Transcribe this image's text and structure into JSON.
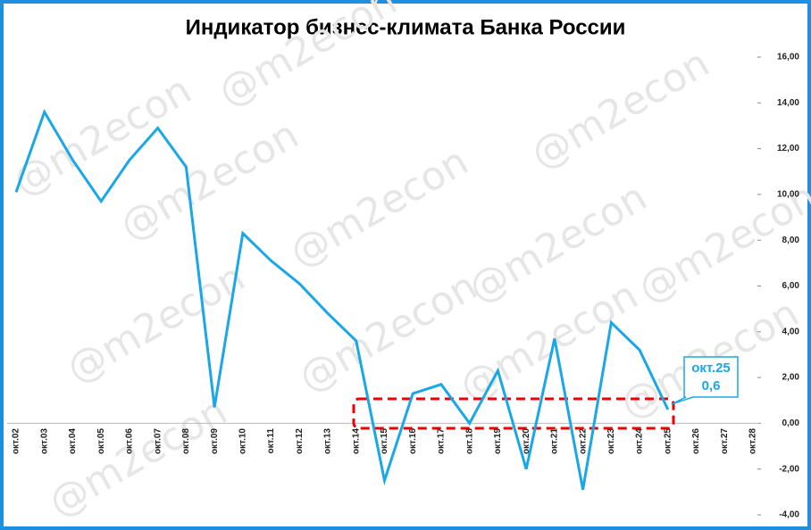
{
  "chart_data": {
    "type": "line",
    "title": "Индикатор бизнес-климата Банка России",
    "watermark": "@m2econ",
    "categories": [
      "окт.02",
      "окт.03",
      "окт.04",
      "окт.05",
      "окт.06",
      "окт.07",
      "окт.08",
      "окт.09",
      "окт.10",
      "окт.11",
      "окт.12",
      "окт.13",
      "окт.14",
      "окт.15",
      "окт.16",
      "окт.17",
      "окт.18",
      "окт.19",
      "окт.20",
      "окт.21",
      "окт.22",
      "окт.23",
      "окт.24",
      "окт.25",
      "окт.26",
      "окт.27",
      "окт.28"
    ],
    "series": [
      {
        "color": "#1aa7e8",
        "values": [
          10.1,
          13.6,
          11.5,
          9.7,
          11.5,
          12.9,
          11.2,
          0.7,
          8.3,
          7.1,
          6.1,
          4.8,
          3.6,
          -2.5,
          1.3,
          1.7,
          0.0,
          2.3,
          -2.0,
          3.7,
          -2.9,
          4.4,
          3.2,
          0.6,
          null,
          null,
          null
        ],
        "value_labels": [
          null,
          null,
          null,
          null,
          null,
          null,
          null,
          null,
          null,
          null,
          null,
          null,
          null,
          null,
          null,
          null,
          null,
          null,
          null,
          null,
          null,
          null,
          null,
          "0,6",
          null,
          null,
          null
        ]
      }
    ],
    "ylim": [
      -4,
      16
    ],
    "yticks": [
      {
        "value": -4,
        "label": "-4,00"
      },
      {
        "value": -2,
        "label": "-2,00"
      },
      {
        "value": 0,
        "label": "0,00"
      },
      {
        "value": 2,
        "label": "2,00"
      },
      {
        "value": 4,
        "label": "4,00"
      },
      {
        "value": 6,
        "label": "6,00"
      },
      {
        "value": 8,
        "label": "8,00"
      },
      {
        "value": 10,
        "label": "10,00"
      },
      {
        "value": 12,
        "label": "12,00"
      },
      {
        "value": 14,
        "label": "14,00"
      },
      {
        "value": 16,
        "label": "16,00"
      }
    ]
  }
}
